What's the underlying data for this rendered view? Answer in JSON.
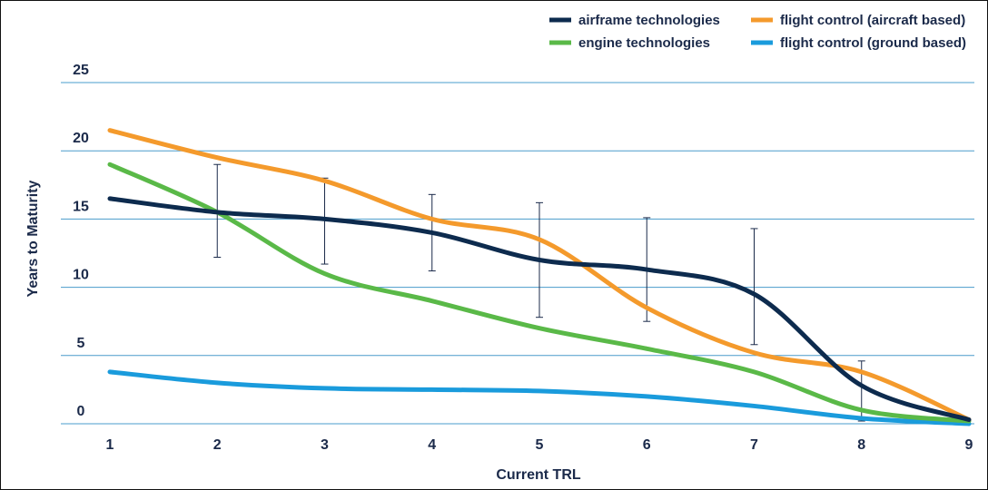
{
  "chart_data": {
    "type": "line",
    "title": "",
    "xlabel": "Current TRL",
    "ylabel": "Years to Maturity",
    "x": [
      1,
      2,
      3,
      4,
      5,
      6,
      7,
      8,
      9
    ],
    "xlim": [
      1,
      9
    ],
    "ylim": [
      0,
      25
    ],
    "yticks": [
      0,
      5,
      10,
      15,
      20,
      25
    ],
    "grid": true,
    "legend_position": "top-right",
    "series": [
      {
        "name": "airframe technologies",
        "color": "#0d2b4e",
        "values": [
          16.5,
          15.5,
          15.0,
          14.0,
          12.0,
          11.3,
          9.5,
          2.8,
          0.3
        ]
      },
      {
        "name": "engine technologies",
        "color": "#5ab948",
        "values": [
          19.0,
          15.5,
          11.0,
          9.0,
          7.0,
          5.5,
          3.8,
          1.0,
          0.2
        ]
      },
      {
        "name": "flight control (aircraft based)",
        "color": "#f49a2c",
        "values": [
          21.5,
          19.5,
          17.8,
          15.0,
          13.5,
          8.5,
          5.2,
          3.8,
          0.3
        ]
      },
      {
        "name": "flight control (ground based)",
        "color": "#1a9bdc",
        "values": [
          3.8,
          3.0,
          2.6,
          2.5,
          2.4,
          2.0,
          1.3,
          0.4,
          0.0
        ]
      }
    ],
    "error_bars": [
      {
        "x": 2,
        "low": 12.2,
        "high": 19.0
      },
      {
        "x": 3,
        "low": 11.7,
        "high": 18.0
      },
      {
        "x": 4,
        "low": 11.2,
        "high": 16.8
      },
      {
        "x": 5,
        "low": 7.8,
        "high": 16.2
      },
      {
        "x": 6,
        "low": 7.5,
        "high": 15.1
      },
      {
        "x": 7,
        "low": 5.8,
        "high": 14.3
      },
      {
        "x": 8,
        "low": 0.2,
        "high": 4.6
      }
    ]
  }
}
